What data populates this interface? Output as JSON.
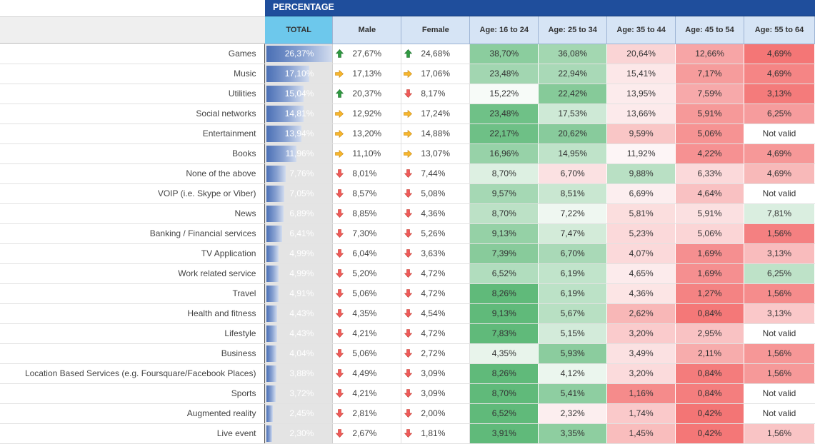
{
  "banner": {
    "title": "PERCENTAGE"
  },
  "columns": {
    "total": "TOTAL",
    "male": "Male",
    "female": "Female",
    "age1": "Age: 16 to 24",
    "age2": "Age: 25 to 34",
    "age3": "Age: 35 to 44",
    "age4": "Age: 45 to 54",
    "age5": "Age: 55 to 64"
  },
  "colors": {
    "banner": "#1f4e9c",
    "header": "#d6e4f5",
    "total_header": "#6dc8ec",
    "positive": "#5cb879",
    "negative": "#f26262",
    "arrow_up": "#2e9a40",
    "arrow_side": "#f0a81c",
    "arrow_down": "#e84646"
  },
  "rows": [
    {
      "label": "Games",
      "total": "26,37%",
      "total_pct": 26.37,
      "male": "27,67%",
      "male_icon": "arrow-up-icon",
      "female": "24,68%",
      "female_icon": "arrow-up-icon",
      "ages": [
        "38,70%",
        "36,08%",
        "20,64%",
        "12,66%",
        "4,69%"
      ]
    },
    {
      "label": "Music",
      "total": "17,10%",
      "total_pct": 17.1,
      "male": "17,13%",
      "male_icon": "arrow-right-icon",
      "female": "17,06%",
      "female_icon": "arrow-right-icon",
      "ages": [
        "23,48%",
        "22,94%",
        "15,41%",
        "7,17%",
        "4,69%"
      ]
    },
    {
      "label": "Utilities",
      "total": "15,04%",
      "total_pct": 15.04,
      "male": "20,37%",
      "male_icon": "arrow-up-icon",
      "female": "8,17%",
      "female_icon": "arrow-down-icon",
      "ages": [
        "15,22%",
        "22,42%",
        "13,95%",
        "7,59%",
        "3,13%"
      ]
    },
    {
      "label": "Social networks",
      "total": "14,81%",
      "total_pct": 14.81,
      "male": "12,92%",
      "male_icon": "arrow-right-icon",
      "female": "17,24%",
      "female_icon": "arrow-right-icon",
      "ages": [
        "23,48%",
        "17,53%",
        "13,66%",
        "5,91%",
        "6,25%"
      ]
    },
    {
      "label": "Entertainment",
      "total": "13,94%",
      "total_pct": 13.94,
      "male": "13,20%",
      "male_icon": "arrow-right-icon",
      "female": "14,88%",
      "female_icon": "arrow-right-icon",
      "ages": [
        "22,17%",
        "20,62%",
        "9,59%",
        "5,06%",
        "Not valid"
      ]
    },
    {
      "label": "Books",
      "total": "11,96%",
      "total_pct": 11.96,
      "male": "11,10%",
      "male_icon": "arrow-right-icon",
      "female": "13,07%",
      "female_icon": "arrow-right-icon",
      "ages": [
        "16,96%",
        "14,95%",
        "11,92%",
        "4,22%",
        "4,69%"
      ]
    },
    {
      "label": "None of the above",
      "total": "7,76%",
      "total_pct": 7.76,
      "male": "8,01%",
      "male_icon": "arrow-down-icon",
      "female": "7,44%",
      "female_icon": "arrow-down-icon",
      "ages": [
        "8,70%",
        "6,70%",
        "9,88%",
        "6,33%",
        "4,69%"
      ]
    },
    {
      "label": "VOIP (i.e. Skype or Viber)",
      "total": "7,05%",
      "total_pct": 7.05,
      "male": "8,57%",
      "male_icon": "arrow-down-icon",
      "female": "5,08%",
      "female_icon": "arrow-down-icon",
      "ages": [
        "9,57%",
        "8,51%",
        "6,69%",
        "4,64%",
        "Not valid"
      ]
    },
    {
      "label": "News",
      "total": "6,89%",
      "total_pct": 6.89,
      "male": "8,85%",
      "male_icon": "arrow-down-icon",
      "female": "4,36%",
      "female_icon": "arrow-down-icon",
      "ages": [
        "8,70%",
        "7,22%",
        "5,81%",
        "5,91%",
        "7,81%"
      ]
    },
    {
      "label": "Banking / Financial services",
      "total": "6,41%",
      "total_pct": 6.41,
      "male": "7,30%",
      "male_icon": "arrow-down-icon",
      "female": "5,26%",
      "female_icon": "arrow-down-icon",
      "ages": [
        "9,13%",
        "7,47%",
        "5,23%",
        "5,06%",
        "1,56%"
      ]
    },
    {
      "label": "TV Application",
      "total": "4,99%",
      "total_pct": 4.99,
      "male": "6,04%",
      "male_icon": "arrow-down-icon",
      "female": "3,63%",
      "female_icon": "arrow-down-icon",
      "ages": [
        "7,39%",
        "6,70%",
        "4,07%",
        "1,69%",
        "3,13%"
      ]
    },
    {
      "label": "Work related service",
      "total": "4,99%",
      "total_pct": 4.99,
      "male": "5,20%",
      "male_icon": "arrow-down-icon",
      "female": "4,72%",
      "female_icon": "arrow-down-icon",
      "ages": [
        "6,52%",
        "6,19%",
        "4,65%",
        "1,69%",
        "6,25%"
      ]
    },
    {
      "label": "Travel",
      "total": "4,91%",
      "total_pct": 4.91,
      "male": "5,06%",
      "male_icon": "arrow-down-icon",
      "female": "4,72%",
      "female_icon": "arrow-down-icon",
      "ages": [
        "8,26%",
        "6,19%",
        "4,36%",
        "1,27%",
        "1,56%"
      ]
    },
    {
      "label": "Health and fitness",
      "total": "4,43%",
      "total_pct": 4.43,
      "male": "4,35%",
      "male_icon": "arrow-down-icon",
      "female": "4,54%",
      "female_icon": "arrow-down-icon",
      "ages": [
        "9,13%",
        "5,67%",
        "2,62%",
        "0,84%",
        "3,13%"
      ]
    },
    {
      "label": "Lifestyle",
      "total": "4,43%",
      "total_pct": 4.43,
      "male": "4,21%",
      "male_icon": "arrow-down-icon",
      "female": "4,72%",
      "female_icon": "arrow-down-icon",
      "ages": [
        "7,83%",
        "5,15%",
        "3,20%",
        "2,95%",
        "Not valid"
      ]
    },
    {
      "label": "Business",
      "total": "4,04%",
      "total_pct": 4.04,
      "male": "5,06%",
      "male_icon": "arrow-down-icon",
      "female": "2,72%",
      "female_icon": "arrow-down-icon",
      "ages": [
        "4,35%",
        "5,93%",
        "3,49%",
        "2,11%",
        "1,56%"
      ]
    },
    {
      "label": "Location Based Services (e.g. Foursquare/Facebook Places)",
      "total": "3,88%",
      "total_pct": 3.88,
      "male": "4,49%",
      "male_icon": "arrow-down-icon",
      "female": "3,09%",
      "female_icon": "arrow-down-icon",
      "ages": [
        "8,26%",
        "4,12%",
        "3,20%",
        "0,84%",
        "1,56%"
      ]
    },
    {
      "label": "Sports",
      "total": "3,72%",
      "total_pct": 3.72,
      "male": "4,21%",
      "male_icon": "arrow-down-icon",
      "female": "3,09%",
      "female_icon": "arrow-down-icon",
      "ages": [
        "8,70%",
        "5,41%",
        "1,16%",
        "0,84%",
        "Not valid"
      ]
    },
    {
      "label": "Augmented reality",
      "total": "2,45%",
      "total_pct": 2.45,
      "male": "2,81%",
      "male_icon": "arrow-down-icon",
      "female": "2,00%",
      "female_icon": "arrow-down-icon",
      "ages": [
        "6,52%",
        "2,32%",
        "1,74%",
        "0,42%",
        "Not valid"
      ]
    },
    {
      "label": "Live event",
      "total": "2,30%",
      "total_pct": 2.3,
      "male": "2,67%",
      "male_icon": "arrow-down-icon",
      "female": "1,81%",
      "female_icon": "arrow-down-icon",
      "ages": [
        "3,91%",
        "3,35%",
        "1,45%",
        "0,42%",
        "1,56%"
      ]
    }
  ]
}
